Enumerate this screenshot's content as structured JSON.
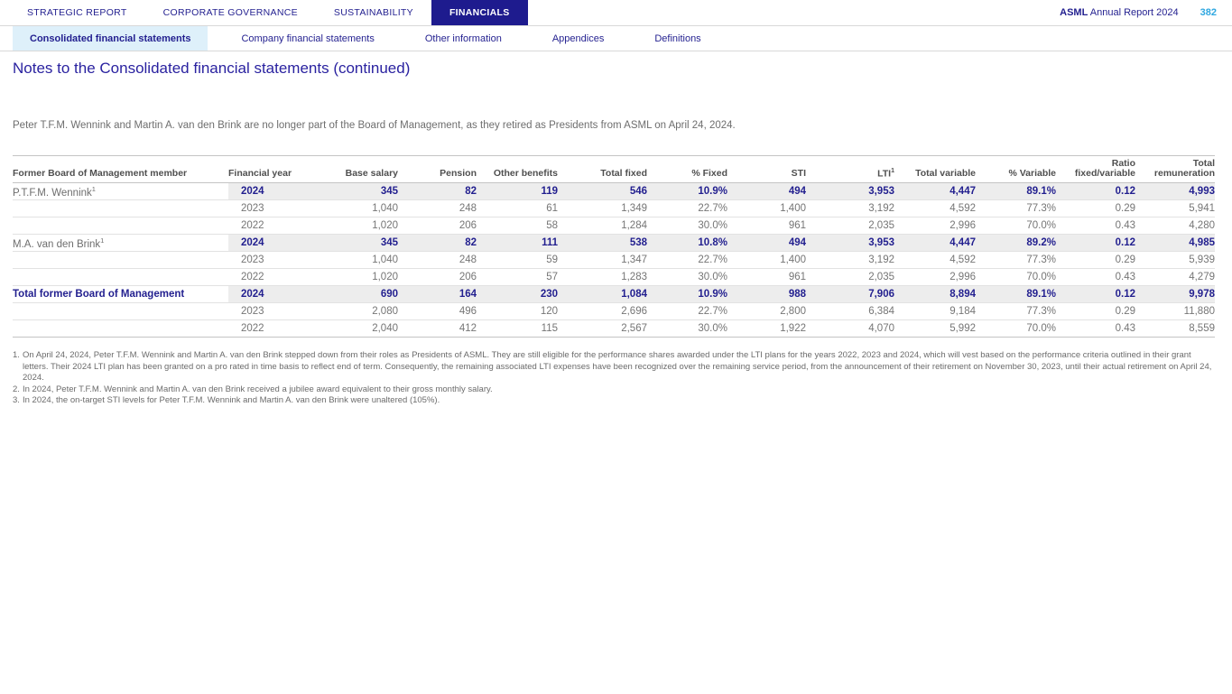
{
  "header": {
    "nav": [
      {
        "label": "STRATEGIC REPORT",
        "active": false
      },
      {
        "label": "CORPORATE GOVERNANCE",
        "active": false
      },
      {
        "label": "SUSTAINABILITY",
        "active": false
      },
      {
        "label": "FINANCIALS",
        "active": true
      }
    ],
    "brand_bold": "ASML",
    "brand_rest": " Annual Report 2024",
    "page_number": "382"
  },
  "subnav": [
    {
      "label": "Consolidated financial statements",
      "active": true
    },
    {
      "label": "Company financial statements",
      "active": false
    },
    {
      "label": "Other information",
      "active": false
    },
    {
      "label": "Appendices",
      "active": false
    },
    {
      "label": "Definitions",
      "active": false
    }
  ],
  "page_title": "Notes to the Consolidated financial statements (continued)",
  "intro": "Peter T.F.M. Wennink and Martin A. van den Brink are no longer part of the Board of Management, as they retired as Presidents from ASML on April 24, 2024.",
  "table": {
    "columns": [
      {
        "label": "Former Board of Management member"
      },
      {
        "label": "Financial year"
      },
      {
        "label": "Base salary"
      },
      {
        "label": "Pension"
      },
      {
        "label": "Other benefits"
      },
      {
        "label": "Total fixed"
      },
      {
        "label": "% Fixed"
      },
      {
        "label": "STI"
      },
      {
        "label": "LTI",
        "sup": "1"
      },
      {
        "label": "Total variable"
      },
      {
        "label": "% Variable"
      },
      {
        "label": "Ratio fixed/variable",
        "two_line": [
          "Ratio",
          "fixed/variable"
        ]
      },
      {
        "label": "Total remuneration",
        "two_line": [
          "Total",
          "remuneration"
        ]
      }
    ],
    "rows": [
      {
        "member": "P.T.F.M. Wennink",
        "member_sup": "1",
        "year": "2024",
        "highlight": true,
        "cells": [
          "345",
          "82",
          "119",
          "546",
          "10.9%",
          "494",
          "3,953",
          "4,447",
          "89.1%",
          "0.12",
          "4,993"
        ],
        "cell_sups": {
          "2": "2",
          "5": "3"
        }
      },
      {
        "member": "",
        "year": "2023",
        "cells": [
          "1,040",
          "248",
          "61",
          "1,349",
          "22.7%",
          "1,400",
          "3,192",
          "4,592",
          "77.3%",
          "0.29",
          "5,941"
        ]
      },
      {
        "member": "",
        "year": "2022",
        "cells": [
          "1,020",
          "206",
          "58",
          "1,284",
          "30.0%",
          "961",
          "2,035",
          "2,996",
          "70.0%",
          "0.43",
          "4,280"
        ]
      },
      {
        "member": "M.A. van den Brink",
        "member_sup": "1",
        "year": "2024",
        "highlight": true,
        "cells": [
          "345",
          "82",
          "111",
          "538",
          "10.8%",
          "494",
          "3,953",
          "4,447",
          "89.2%",
          "0.12",
          "4,985"
        ],
        "cell_sups": {
          "2": "2",
          "5": "3"
        }
      },
      {
        "member": "",
        "year": "2023",
        "cells": [
          "1,040",
          "248",
          "59",
          "1,347",
          "22.7%",
          "1,400",
          "3,192",
          "4,592",
          "77.3%",
          "0.29",
          "5,939"
        ]
      },
      {
        "member": "",
        "year": "2022",
        "cells": [
          "1,020",
          "206",
          "57",
          "1,283",
          "30.0%",
          "961",
          "2,035",
          "2,996",
          "70.0%",
          "0.43",
          "4,279"
        ]
      },
      {
        "member": "Total former Board of Management",
        "member_bold": true,
        "year": "2024",
        "highlight": true,
        "total": true,
        "cells": [
          "690",
          "164",
          "230",
          "1,084",
          "10.9%",
          "988",
          "7,906",
          "8,894",
          "89.1%",
          "0.12",
          "9,978"
        ]
      },
      {
        "member": "",
        "year": "2023",
        "cells": [
          "2,080",
          "496",
          "120",
          "2,696",
          "22.7%",
          "2,800",
          "6,384",
          "9,184",
          "77.3%",
          "0.29",
          "11,880"
        ]
      },
      {
        "member": "",
        "year": "2022",
        "cells": [
          "2,040",
          "412",
          "115",
          "2,567",
          "30.0%",
          "1,922",
          "4,070",
          "5,992",
          "70.0%",
          "0.43",
          "8,559"
        ]
      }
    ]
  },
  "footnotes": [
    {
      "marker": "1.",
      "text": "On April 24, 2024, Peter T.F.M. Wennink and Martin A. van den Brink stepped down from their roles as Presidents of ASML. They are still eligible for the performance shares awarded under the LTI plans for the years 2022, 2023 and 2024, which will vest based on the performance criteria outlined in their grant letters. Their 2024 LTI plan has been granted on a pro rated in time basis to reflect end of term. Consequently, the remaining associated LTI expenses have been recognized over the remaining service period, from the announcement of their retirement on November 30, 2023, until their actual retirement on April 24, 2024."
    },
    {
      "marker": "2.",
      "text": "In 2024, Peter T.F.M. Wennink and Martin A. van den Brink received a jubilee award equivalent to their gross monthly salary."
    },
    {
      "marker": "3.",
      "text": "In 2024, the on-target STI levels for Peter T.F.M. Wennink and Martin A. van den Brink were unaltered (105%)."
    }
  ],
  "colors": {
    "brand_navy": "#221E8F",
    "financials_tab_bg": "#1E1B8E",
    "page_number_blue": "#2EA7E0",
    "active_subtab_bg": "#DEF0FA",
    "highlight_row_bg": "#EDEDED"
  }
}
